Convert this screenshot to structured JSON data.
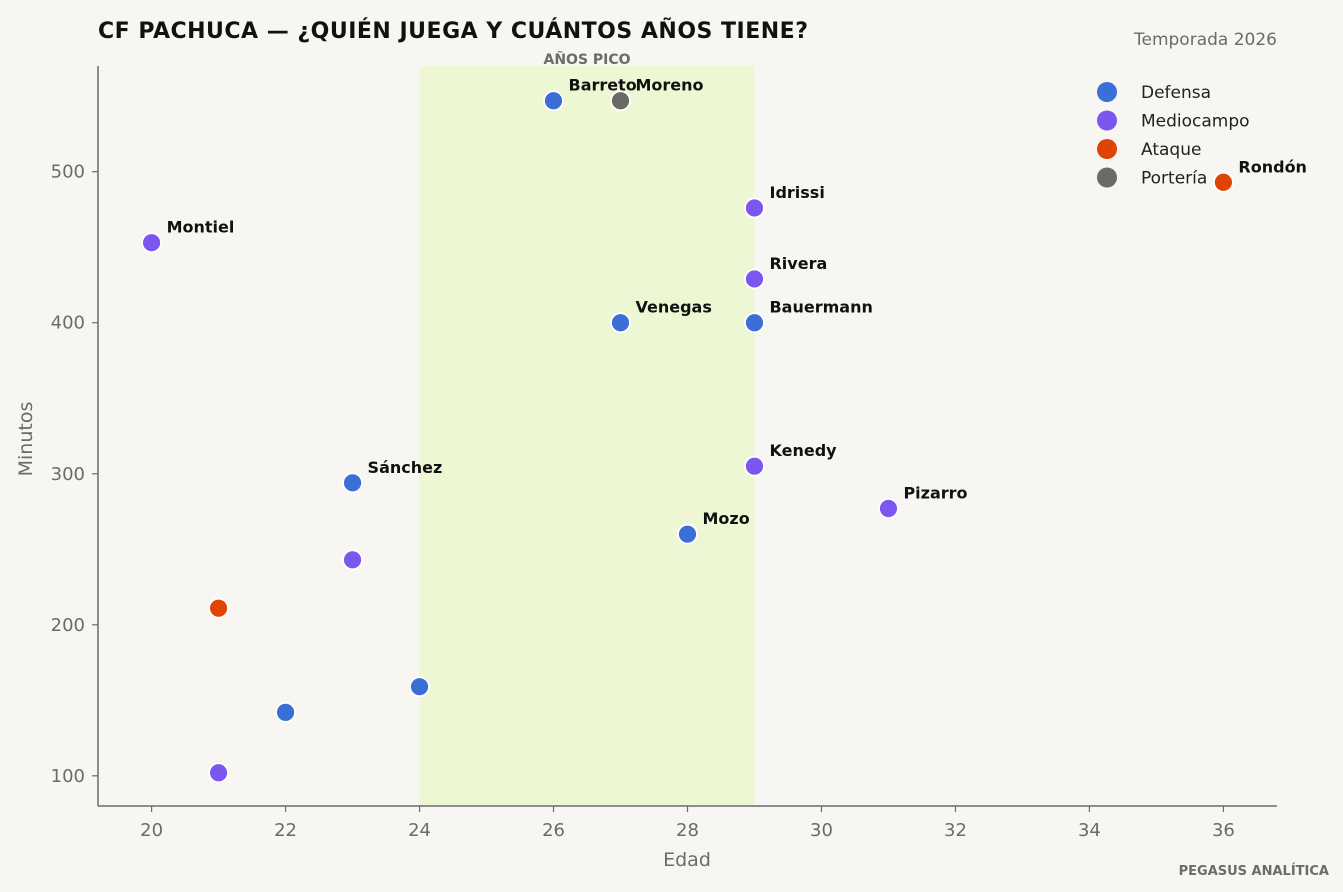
{
  "chart_data": {
    "type": "scatter",
    "title": "CF PACHUCA — ¿QUIÉN JUEGA Y CUÁNTOS AÑOS TIENE?",
    "subtitle": "Temporada 2026",
    "xlabel": "Edad",
    "ylabel": "Minutos",
    "xlim": [
      19.2,
      36.8
    ],
    "ylim": [
      80,
      570
    ],
    "xticks": [
      20,
      22,
      24,
      26,
      28,
      30,
      32,
      34,
      36
    ],
    "yticks": [
      100,
      200,
      300,
      400,
      500
    ],
    "grid": false,
    "legend_position": "top-right",
    "highlight_band": {
      "x_range": [
        24,
        29
      ],
      "label": "AÑOS PICO",
      "color": "#eef7d4"
    },
    "series": [
      {
        "name": "Defensa",
        "color": "#3b6fd6",
        "points": [
          {
            "x": 26,
            "y": 547,
            "label": "Barreto"
          },
          {
            "x": 27,
            "y": 400,
            "label": "Venegas"
          },
          {
            "x": 29,
            "y": 400,
            "label": "Bauermann"
          },
          {
            "x": 23,
            "y": 294,
            "label": "Sánchez"
          },
          {
            "x": 28,
            "y": 260,
            "label": "Mozo"
          },
          {
            "x": 24,
            "y": 159,
            "label": ""
          },
          {
            "x": 22,
            "y": 142,
            "label": ""
          }
        ]
      },
      {
        "name": "Mediocampo",
        "color": "#7b57ef",
        "points": [
          {
            "x": 29,
            "y": 476,
            "label": "Idrissi"
          },
          {
            "x": 20,
            "y": 453,
            "label": "Montiel"
          },
          {
            "x": 29,
            "y": 429,
            "label": "Rivera"
          },
          {
            "x": 29,
            "y": 305,
            "label": "Kenedy"
          },
          {
            "x": 31,
            "y": 277,
            "label": "Pizarro"
          },
          {
            "x": 23,
            "y": 243,
            "label": ""
          },
          {
            "x": 21,
            "y": 102,
            "label": ""
          }
        ]
      },
      {
        "name": "Ataque",
        "color": "#df4406",
        "points": [
          {
            "x": 36,
            "y": 493,
            "label": "Rondón"
          },
          {
            "x": 21,
            "y": 211,
            "label": ""
          }
        ]
      },
      {
        "name": "Portería",
        "color": "#6b6b66",
        "points": [
          {
            "x": 27,
            "y": 547,
            "label": "Moreno"
          }
        ]
      }
    ],
    "credit": "PEGASUS ANALÍTICA"
  }
}
